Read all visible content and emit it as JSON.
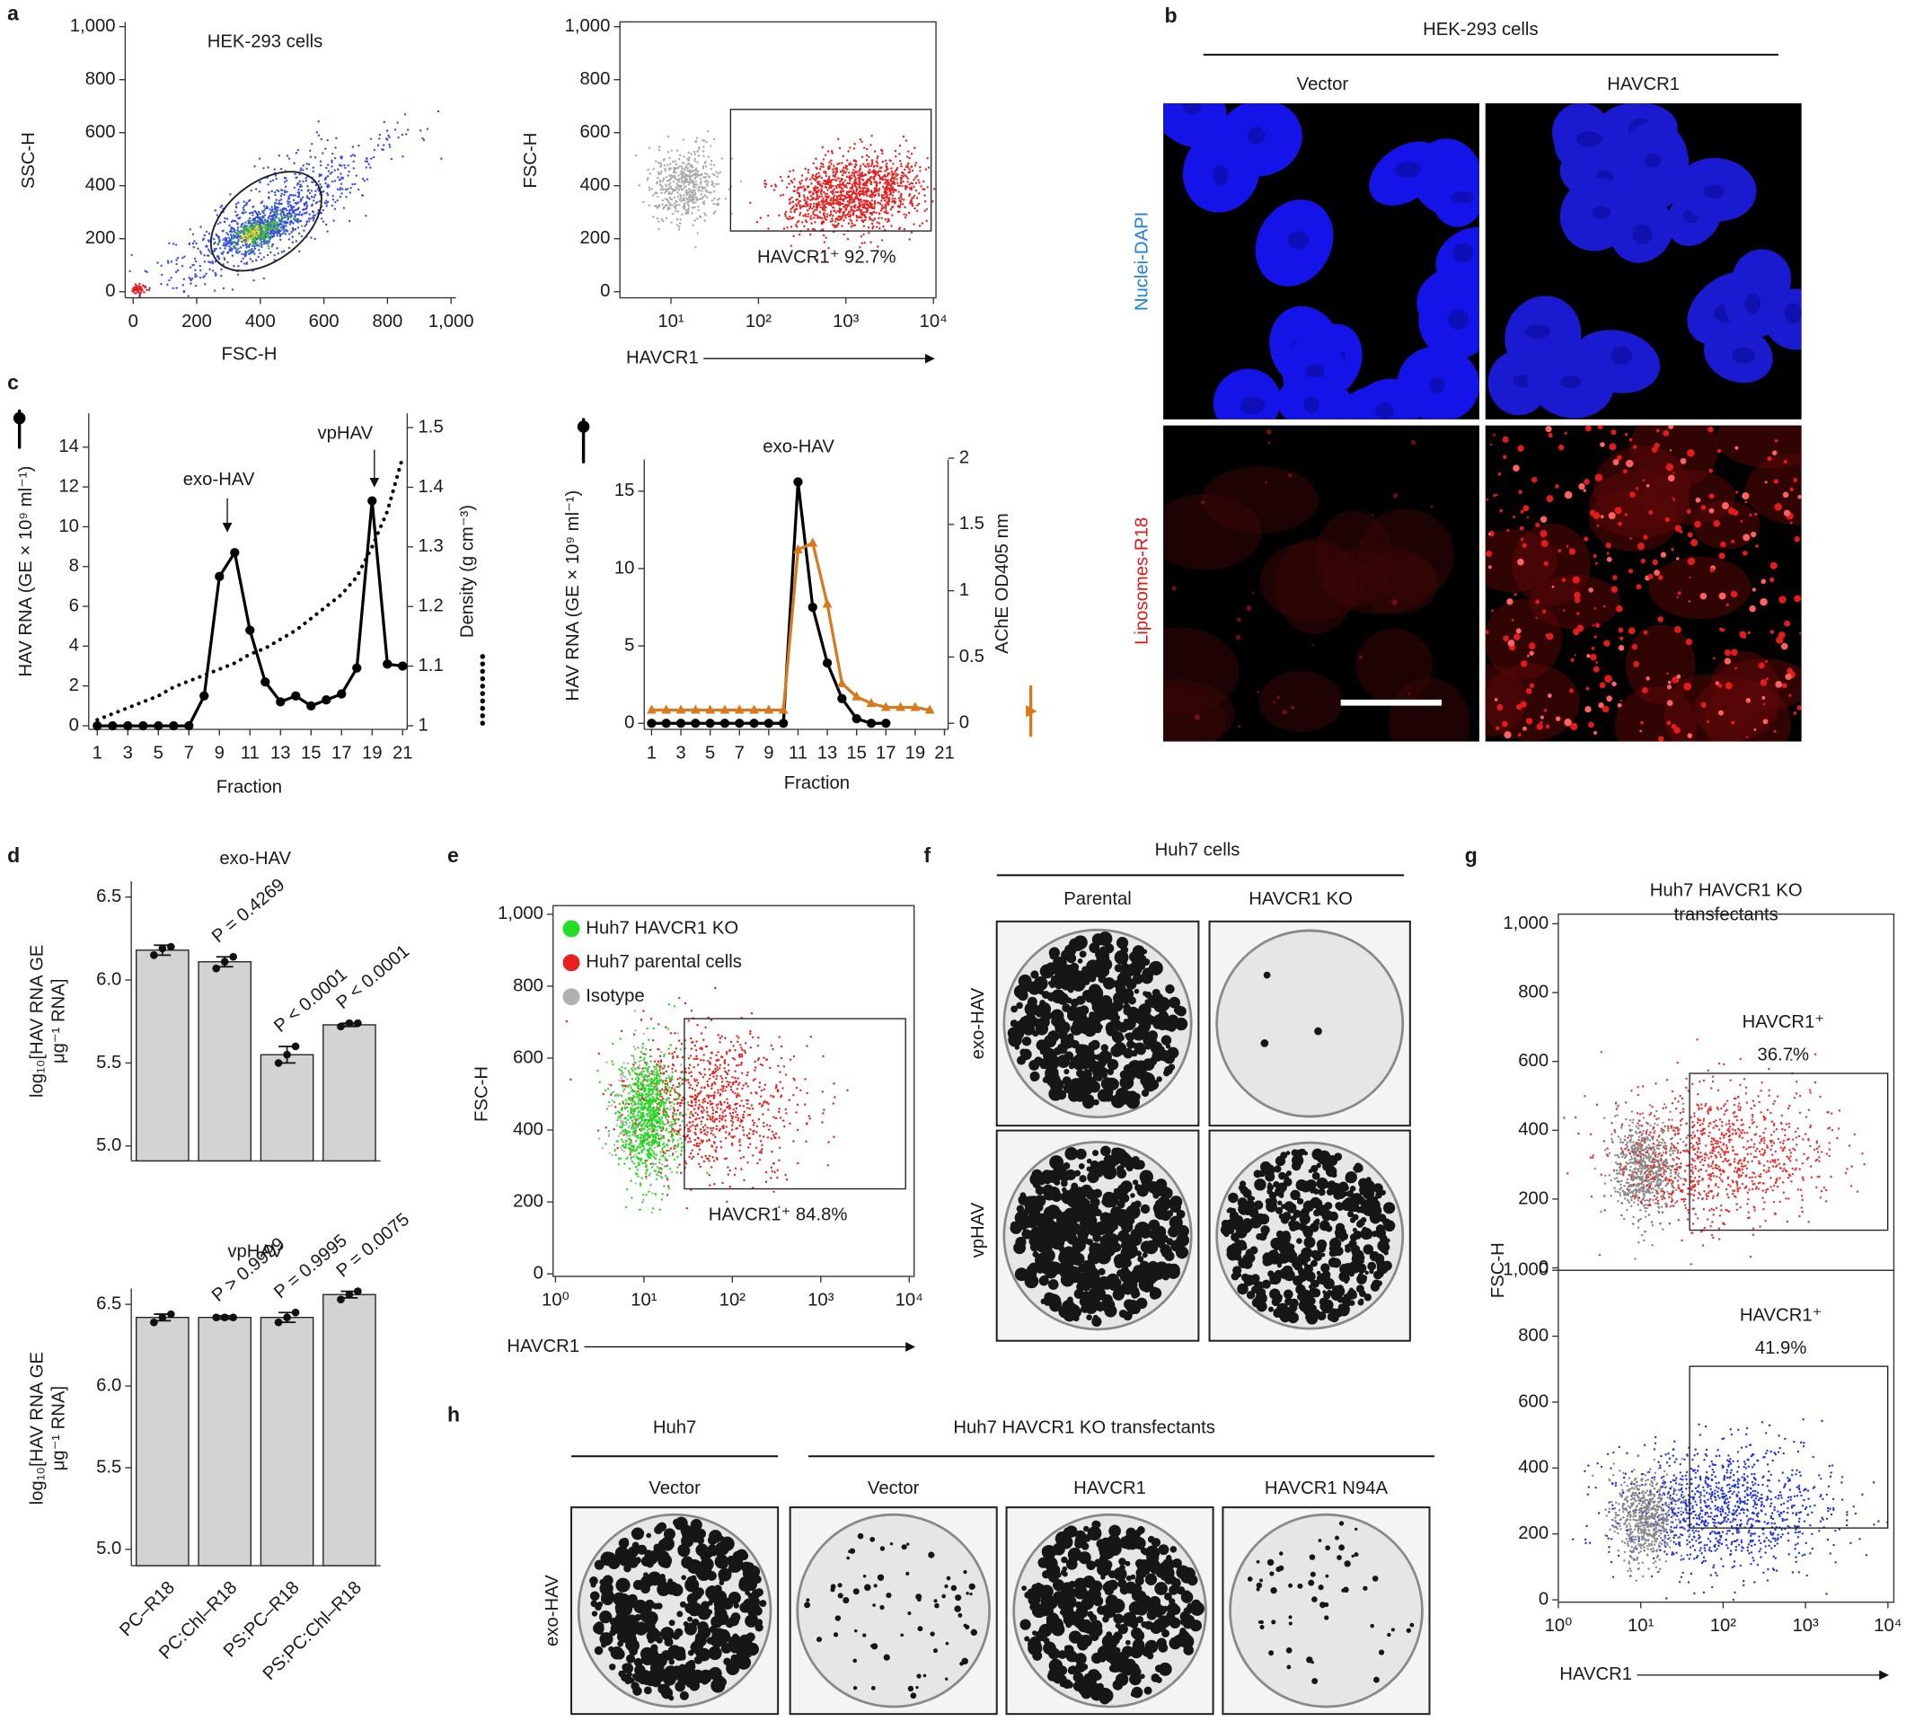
{
  "chart_data": [
    {
      "type": "flow",
      "panel": "a",
      "title": "HEK-293 cells",
      "xlabel": "FSC-H",
      "ylabel": "SSC-H",
      "xlim": [
        -25,
        1015
      ],
      "ylim": [
        -23,
        1018
      ],
      "xticks": [
        0,
        200,
        400,
        600,
        800,
        {
          "value": 1000,
          "label": "1,000"
        }
      ],
      "yticks": [
        0,
        200,
        400,
        600,
        800,
        {
          "value": 1000,
          "label": "1,000"
        }
      ],
      "colors": [
        "#3a4fe0",
        "#3dbb3d",
        "#e8d81a",
        "#e02020"
      ]
    },
    {
      "type": "flow",
      "xlabel": "HAVCR1",
      "ylabel": "FSC-H",
      "xscale": "log",
      "xlim": [
        2.61,
        10700
      ],
      "ylim": [
        -23,
        1018
      ],
      "xticks": [
        {
          "value": 10,
          "label": "10¹"
        },
        {
          "value": 100,
          "label": "10²"
        },
        {
          "value": 1000,
          "label": "10³"
        },
        {
          "value": 10000,
          "label": "10⁴"
        }
      ],
      "yticks": [
        0,
        200,
        400,
        600,
        800,
        {
          "value": 1000,
          "label": "1,000"
        }
      ],
      "annotation": "HAVCR1⁺ 92.7%",
      "colors": [
        "#aaaaaa",
        "#e82020"
      ]
    },
    {
      "type": "line",
      "panel": "c",
      "xlabel": "Fraction",
      "ylabel": "HAV RNA (GE × 10⁹ ml⁻¹)",
      "y2label": "Density (g cm⁻³)",
      "annotations": [
        "exo-HAV",
        "vpHAV"
      ],
      "x": [
        1,
        2,
        3,
        4,
        5,
        6,
        7,
        8,
        9,
        10,
        11,
        12,
        13,
        14,
        15,
        16,
        17,
        18,
        19,
        20,
        21
      ],
      "xlim": [
        0.44,
        21.3
      ],
      "ylim": [
        -0.18,
        15.7
      ],
      "y2lim": [
        0.994,
        1.524
      ],
      "xticks": [
        1,
        3,
        5,
        7,
        9,
        11,
        13,
        15,
        17,
        19,
        21
      ],
      "yticks": [
        0,
        2,
        4,
        6,
        8,
        10,
        12,
        14
      ],
      "y2ticks": [
        1,
        1.1,
        1.2,
        1.3,
        1.4,
        1.5
      ],
      "series": [
        {
          "color": "#000000",
          "marker": "circle",
          "values": [
            0,
            0,
            0,
            0,
            0,
            0,
            0,
            1.5,
            7.5,
            8.7,
            4.8,
            2.2,
            1.2,
            1.5,
            1.0,
            1.3,
            1.6,
            2.9,
            11.3,
            3.1,
            3.0
          ]
        },
        {
          "color": "#000000",
          "dash": "dotted",
          "axis": "y2",
          "values": [
            1.01,
            1.02,
            1.03,
            1.04,
            1.05,
            1.065,
            1.075,
            1.085,
            1.095,
            1.105,
            1.12,
            1.13,
            1.145,
            1.16,
            1.18,
            1.2,
            1.22,
            1.25,
            1.3,
            1.36,
            1.45
          ]
        }
      ]
    },
    {
      "type": "line",
      "title": "exo-HAV",
      "xlabel": "Fraction",
      "ylabel": "HAV RNA (GE × 10⁹ ml⁻¹)",
      "y2label": "AChE OD405 nm",
      "x": [
        1,
        2,
        3,
        4,
        5,
        6,
        7,
        8,
        9,
        10,
        11,
        12,
        13,
        14,
        15,
        16,
        17,
        18,
        19,
        20,
        21
      ],
      "xlim": [
        0.5,
        21.25
      ],
      "ylim": [
        -0.39,
        17.05
      ],
      "y2lim": [
        -0.046,
        1.99
      ],
      "xticks": [
        1,
        3,
        5,
        7,
        9,
        11,
        13,
        15,
        17,
        19,
        21
      ],
      "yticks": [
        0,
        5,
        10,
        15
      ],
      "y2ticks": [
        0,
        0.5,
        1,
        1.5,
        2
      ],
      "series": [
        {
          "color": "#000000",
          "marker": "circle",
          "values": [
            0,
            0,
            0,
            0,
            0,
            0,
            0,
            0,
            0,
            0,
            15.6,
            7.5,
            3.9,
            1.6,
            0.3,
            0,
            0,
            null,
            null,
            null,
            null
          ]
        },
        {
          "color": "#d9791e",
          "marker": "triangle",
          "axis": "y2",
          "values": [
            0.1,
            0.1,
            0.1,
            0.1,
            0.1,
            0.1,
            0.1,
            0.1,
            0.1,
            0.1,
            1.31,
            1.36,
            0.9,
            0.3,
            0.2,
            0.15,
            0.12,
            0.12,
            0.12,
            0.1,
            null
          ]
        }
      ]
    },
    {
      "type": "bar",
      "panel": "d",
      "title": "exo-HAV",
      "ylabel": [
        "log₁₀[HAV RNA GE",
        "μg⁻¹ RNA]"
      ],
      "ylim": [
        4.91,
        6.595
      ],
      "yticks": [
        {
          "value": 5,
          "label": "5.0"
        },
        5.5,
        {
          "value": 6,
          "label": "6.0"
        },
        6.5
      ],
      "values": [
        6.18,
        6.11,
        5.55,
        5.73
      ],
      "errors": [
        0.03,
        0.03,
        0.05,
        0.01
      ],
      "points": [
        [
          6.15,
          6.19,
          6.2
        ],
        [
          6.07,
          6.11,
          6.14
        ],
        [
          5.5,
          5.55,
          5.6
        ],
        [
          5.72,
          5.74,
          5.74
        ]
      ],
      "p_values": [
        null,
        "P = 0.4269",
        "P < 0.0001",
        "P < 0.0001"
      ],
      "color": "#d3d3d3"
    },
    {
      "type": "bar",
      "title": "vpHAV",
      "ylabel": [
        "log₁₀[HAV RNA GE",
        "μg⁻¹ RNA]"
      ],
      "categories": [
        "PC–R18",
        "PC:Chl–R18",
        "PS:PC–R18",
        "PS:PC:Chl–R18"
      ],
      "ylim": [
        4.9,
        6.597
      ],
      "yticks": [
        {
          "value": 5,
          "label": "5.0"
        },
        5.5,
        {
          "value": 6,
          "label": "6.0"
        },
        6.5
      ],
      "values": [
        6.42,
        6.42,
        6.42,
        6.56
      ],
      "errors": [
        0.02,
        0.01,
        0.03,
        0.02
      ],
      "points": [
        [
          6.39,
          6.42,
          6.44
        ],
        [
          6.42,
          6.42,
          6.42
        ],
        [
          6.39,
          6.42,
          6.45
        ],
        [
          6.53,
          6.56,
          6.58
        ]
      ],
      "p_values": [
        null,
        "P > 0.9999",
        "P = 0.9995",
        "P = 0.0075"
      ],
      "color": "#d3d3d3"
    },
    {
      "type": "flow",
      "panel": "e",
      "xlabel": "HAVCR1",
      "ylabel": "FSC-H",
      "xscale": "log",
      "xlim": [
        0.94,
        11350
      ],
      "ylim": [
        -7,
        1024
      ],
      "xticks": [
        {
          "value": 1,
          "label": "10⁰"
        },
        {
          "value": 10,
          "label": "10¹"
        },
        {
          "value": 100,
          "label": "10²"
        },
        {
          "value": 1000,
          "label": "10³"
        },
        {
          "value": 10000,
          "label": "10⁴"
        }
      ],
      "yticks": [
        0,
        200,
        400,
        600,
        800,
        {
          "value": 1000,
          "label": "1,000"
        }
      ],
      "annotation": "HAVCR1⁺ 84.8%",
      "legend": "upper left",
      "series": [
        {
          "name": "Huh7 HAVCR1 KO",
          "color": "#22dd22"
        },
        {
          "name": "Huh7 parental cells",
          "color": "#e82020"
        },
        {
          "name": "Isotype",
          "color": "#b0b0b0"
        }
      ]
    },
    {
      "type": "flow",
      "panel": "g",
      "title": [
        "Huh7 HAVCR1 KO",
        "transfectants"
      ],
      "ylabel": "FSC-H",
      "xscale": "log",
      "xlim": [
        1,
        11800
      ],
      "ylim": [
        -7,
        1028
      ],
      "yticks": [
        0,
        200,
        400,
        600,
        800,
        {
          "value": 1000,
          "label": "1,000"
        }
      ],
      "annotation": [
        "HAVCR1⁺",
        "36.7%"
      ],
      "colors": [
        "#888888",
        "#e83030"
      ]
    },
    {
      "type": "flow",
      "xlabel": "HAVCR1",
      "xscale": "log",
      "xlim": [
        1,
        11800
      ],
      "ylim": [
        -7,
        1000
      ],
      "xticks": [
        {
          "value": 1,
          "label": "10⁰"
        },
        {
          "value": 10,
          "label": "10¹"
        },
        {
          "value": 100,
          "label": "10²"
        },
        {
          "value": 1000,
          "label": "10³"
        },
        {
          "value": 10000,
          "label": "10⁴"
        }
      ],
      "yticks": [
        0,
        200,
        400,
        600,
        800,
        {
          "value": 1000,
          "label": "1,000"
        }
      ],
      "annotation": [
        "HAVCR1⁺",
        "41.9%"
      ],
      "colors": [
        "#888888",
        "#2233dd"
      ]
    }
  ],
  "images": {
    "b": {
      "panel": "b",
      "title": "HEK-293 cells",
      "columns": [
        "Vector",
        "HAVCR1"
      ],
      "rows": [
        "Nuclei-DAPI",
        "Liposomes-R18"
      ]
    },
    "f": {
      "panel": "f",
      "title": "Huh7 cells",
      "columns": [
        "Parental",
        "HAVCR1 KO"
      ],
      "rows": [
        "exo-HAV",
        "vpHAV"
      ]
    },
    "h": {
      "panel": "h",
      "groups": [
        "Huh7",
        "Huh7 HAVCR1 KO transfectants"
      ],
      "columns": [
        "Vector",
        "Vector",
        "HAVCR1",
        "HAVCR1 N94A"
      ],
      "rows": [
        "exo-HAV"
      ]
    }
  }
}
